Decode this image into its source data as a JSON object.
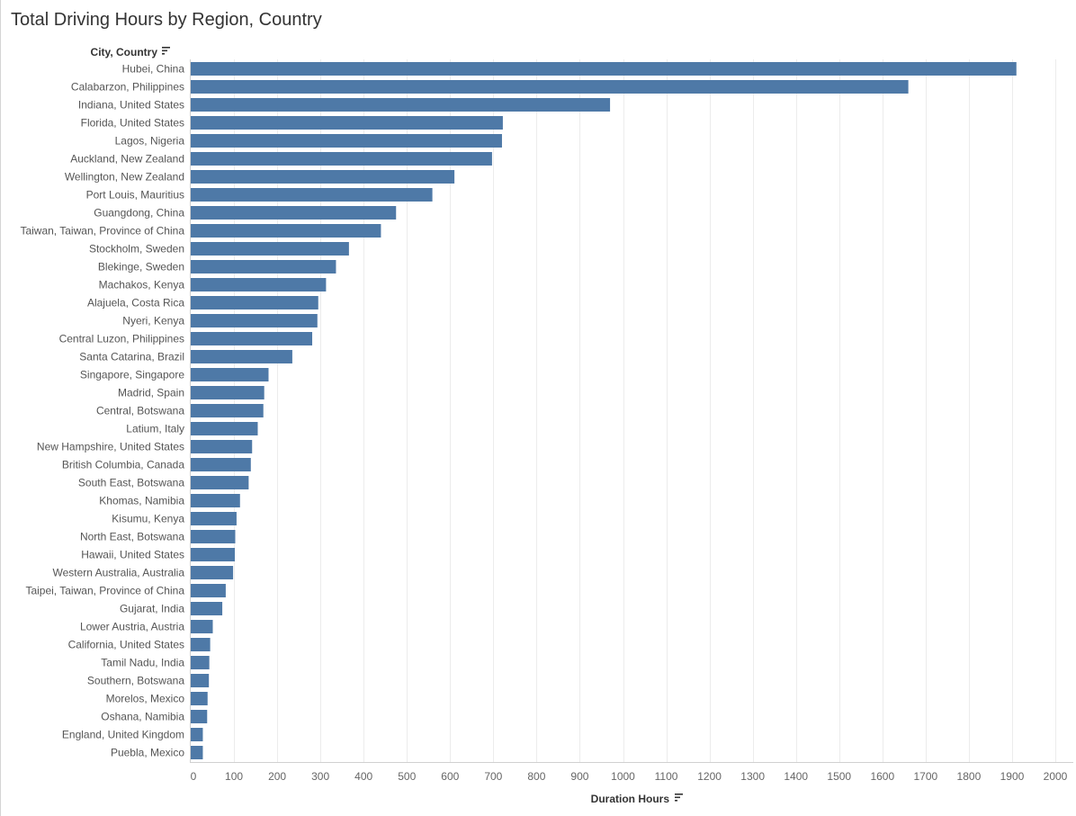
{
  "page": {
    "title": "Total Driving Hours by Region, Country"
  },
  "chart_data": {
    "type": "bar",
    "orientation": "horizontal",
    "title": "Total Driving Hours by Region, Country",
    "ylabel": "City, Country",
    "xlabel": "Duration Hours",
    "xlim": [
      0,
      2000
    ],
    "xticks": [
      0,
      100,
      200,
      300,
      400,
      500,
      600,
      700,
      800,
      900,
      1000,
      1100,
      1200,
      1300,
      1400,
      1500,
      1600,
      1700,
      1800,
      1900,
      2000
    ],
    "grid": "vertical",
    "sort_icon": "sort-descending-icon",
    "bar_color": "#4e79a7",
    "categories": [
      "Hubei, China",
      "Calabarzon, Philippines",
      "Indiana, United States",
      "Florida, United States",
      "Lagos, Nigeria",
      "Auckland, New Zealand",
      "Wellington, New Zealand",
      "Port Louis, Mauritius",
      "Guangdong, China",
      "Taiwan, Taiwan, Province of China",
      "Stockholm, Sweden",
      "Blekinge, Sweden",
      "Machakos, Kenya",
      "Alajuela, Costa Rica",
      "Nyeri, Kenya",
      "Central Luzon, Philippines",
      "Santa Catarina, Brazil",
      "Singapore, Singapore",
      "Madrid, Spain",
      "Central, Botswana",
      "Latium, Italy",
      "New Hampshire, United States",
      "British Columbia, Canada",
      "South East, Botswana",
      "Khomas, Namibia",
      "Kisumu, Kenya",
      "North East, Botswana",
      "Hawaii, United States",
      "Western Australia, Australia",
      "Taipei, Taiwan, Province of China",
      "Gujarat, India",
      "Lower Austria, Austria",
      "California, United States",
      "Tamil Nadu, India",
      "Southern, Botswana",
      "Morelos, Mexico",
      "Oshana, Namibia",
      "England, United Kingdom",
      "Puebla, Mexico"
    ],
    "values": [
      1910,
      1660,
      970,
      722,
      720,
      697,
      610,
      559,
      475,
      440,
      366,
      336,
      313,
      295,
      293,
      281,
      235,
      180,
      170,
      168,
      155,
      142,
      139,
      134,
      114,
      106,
      103,
      102,
      98,
      81,
      73,
      51,
      45,
      43,
      42,
      39,
      38,
      28,
      28
    ]
  }
}
